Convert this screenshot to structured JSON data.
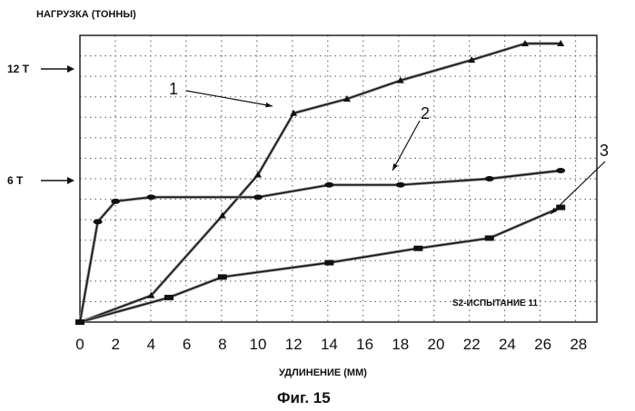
{
  "chart_data": {
    "type": "line",
    "ylabel": "НАГРУЗКА (ТОННЫ)",
    "xlabel": "УДЛИНЕНИЕ (ММ)",
    "caption": "Фиг. 15",
    "annotation": "S2-ИСПЫТАНИЕ 11",
    "xlim": [
      0,
      28
    ],
    "ylim": [
      0,
      14
    ],
    "x_ticks": [
      0,
      2,
      4,
      6,
      8,
      10,
      12,
      14,
      16,
      18,
      20,
      22,
      24,
      26,
      28
    ],
    "y_level_labels": [
      {
        "text": "12 T",
        "value": 12
      },
      {
        "text": "6 T",
        "value": 6
      }
    ],
    "grid": true,
    "series": [
      {
        "label": "1",
        "x": [
          0,
          4,
          8,
          10,
          12,
          15,
          18,
          22,
          25,
          27
        ],
        "y": [
          0,
          1.3,
          5.2,
          7.2,
          10.2,
          10.9,
          11.8,
          12.8,
          13.6,
          13.6
        ]
      },
      {
        "label": "2",
        "x": [
          0,
          1,
          2,
          4,
          10,
          14,
          18,
          23,
          27
        ],
        "y": [
          0,
          4.9,
          5.9,
          6.1,
          6.1,
          6.7,
          6.7,
          7.0,
          7.4
        ]
      },
      {
        "label": "3",
        "x": [
          0,
          5,
          8,
          14,
          19,
          23,
          27
        ],
        "y": [
          0,
          1.2,
          2.2,
          2.9,
          3.6,
          4.1,
          5.6
        ]
      }
    ]
  }
}
